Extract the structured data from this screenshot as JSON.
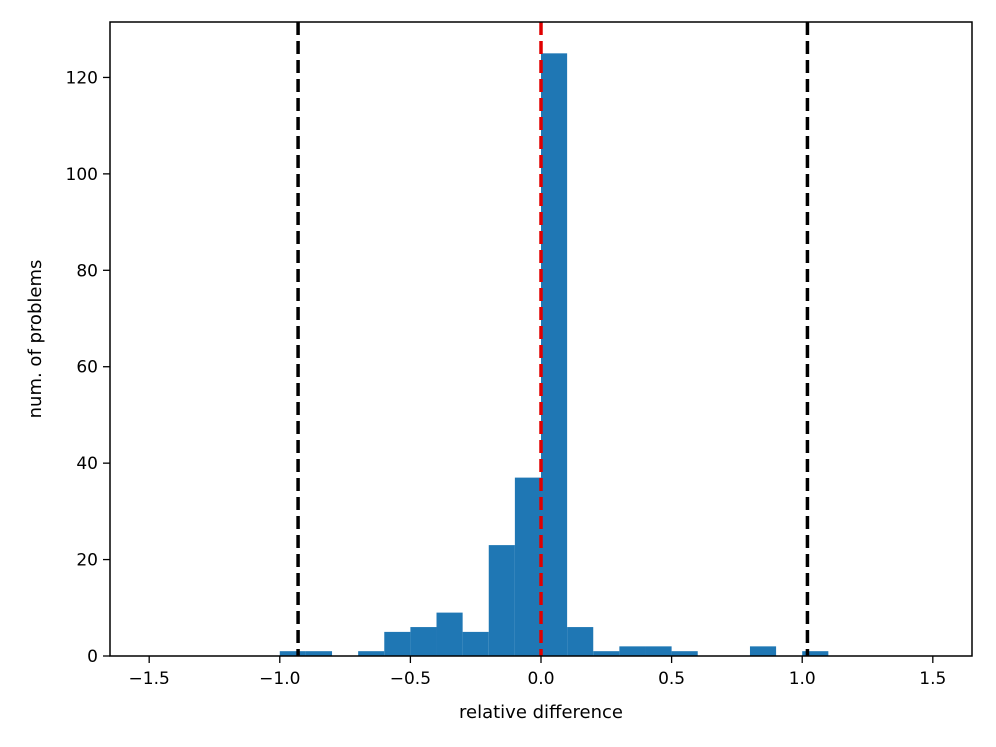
{
  "chart_data": {
    "type": "bar",
    "xlabel": "relative difference",
    "ylabel": "num. of problems",
    "xlim": [
      -1.65,
      1.65
    ],
    "ylim": [
      0,
      131.5
    ],
    "xticks": [
      -1.5,
      -1.0,
      -0.5,
      0.0,
      0.5,
      1.0,
      1.5
    ],
    "xtick_labels": [
      "−1.5",
      "−1.0",
      "−0.5",
      "0.0",
      "0.5",
      "1.0",
      "1.5"
    ],
    "yticks": [
      0,
      20,
      40,
      60,
      80,
      100,
      120
    ],
    "ytick_labels": [
      "0",
      "20",
      "40",
      "60",
      "80",
      "100",
      "120"
    ],
    "bar_width": 0.1,
    "bins": [
      {
        "x0": -1.0,
        "x1": -0.9,
        "count": 1
      },
      {
        "x0": -0.9,
        "x1": -0.8,
        "count": 1
      },
      {
        "x0": -0.7,
        "x1": -0.6,
        "count": 1
      },
      {
        "x0": -0.6,
        "x1": -0.5,
        "count": 5
      },
      {
        "x0": -0.5,
        "x1": -0.4,
        "count": 6
      },
      {
        "x0": -0.4,
        "x1": -0.3,
        "count": 9
      },
      {
        "x0": -0.3,
        "x1": -0.2,
        "count": 5
      },
      {
        "x0": -0.2,
        "x1": -0.1,
        "count": 23
      },
      {
        "x0": -0.1,
        "x1": 0.0,
        "count": 37
      },
      {
        "x0": 0.0,
        "x1": 0.1,
        "count": 125
      },
      {
        "x0": 0.1,
        "x1": 0.2,
        "count": 6
      },
      {
        "x0": 0.2,
        "x1": 0.3,
        "count": 1
      },
      {
        "x0": 0.3,
        "x1": 0.4,
        "count": 2
      },
      {
        "x0": 0.4,
        "x1": 0.5,
        "count": 2
      },
      {
        "x0": 0.5,
        "x1": 0.6,
        "count": 1
      },
      {
        "x0": 0.8,
        "x1": 0.9,
        "count": 2
      },
      {
        "x0": 1.0,
        "x1": 1.1,
        "count": 1
      }
    ],
    "vlines": [
      {
        "x": -0.93,
        "color": "#000000",
        "style": "dashed"
      },
      {
        "x": 0.0,
        "color": "#e00000",
        "style": "dashed"
      },
      {
        "x": 1.02,
        "color": "#000000",
        "style": "dashed"
      }
    ],
    "bar_color": "#1f77b4",
    "grid": false
  }
}
